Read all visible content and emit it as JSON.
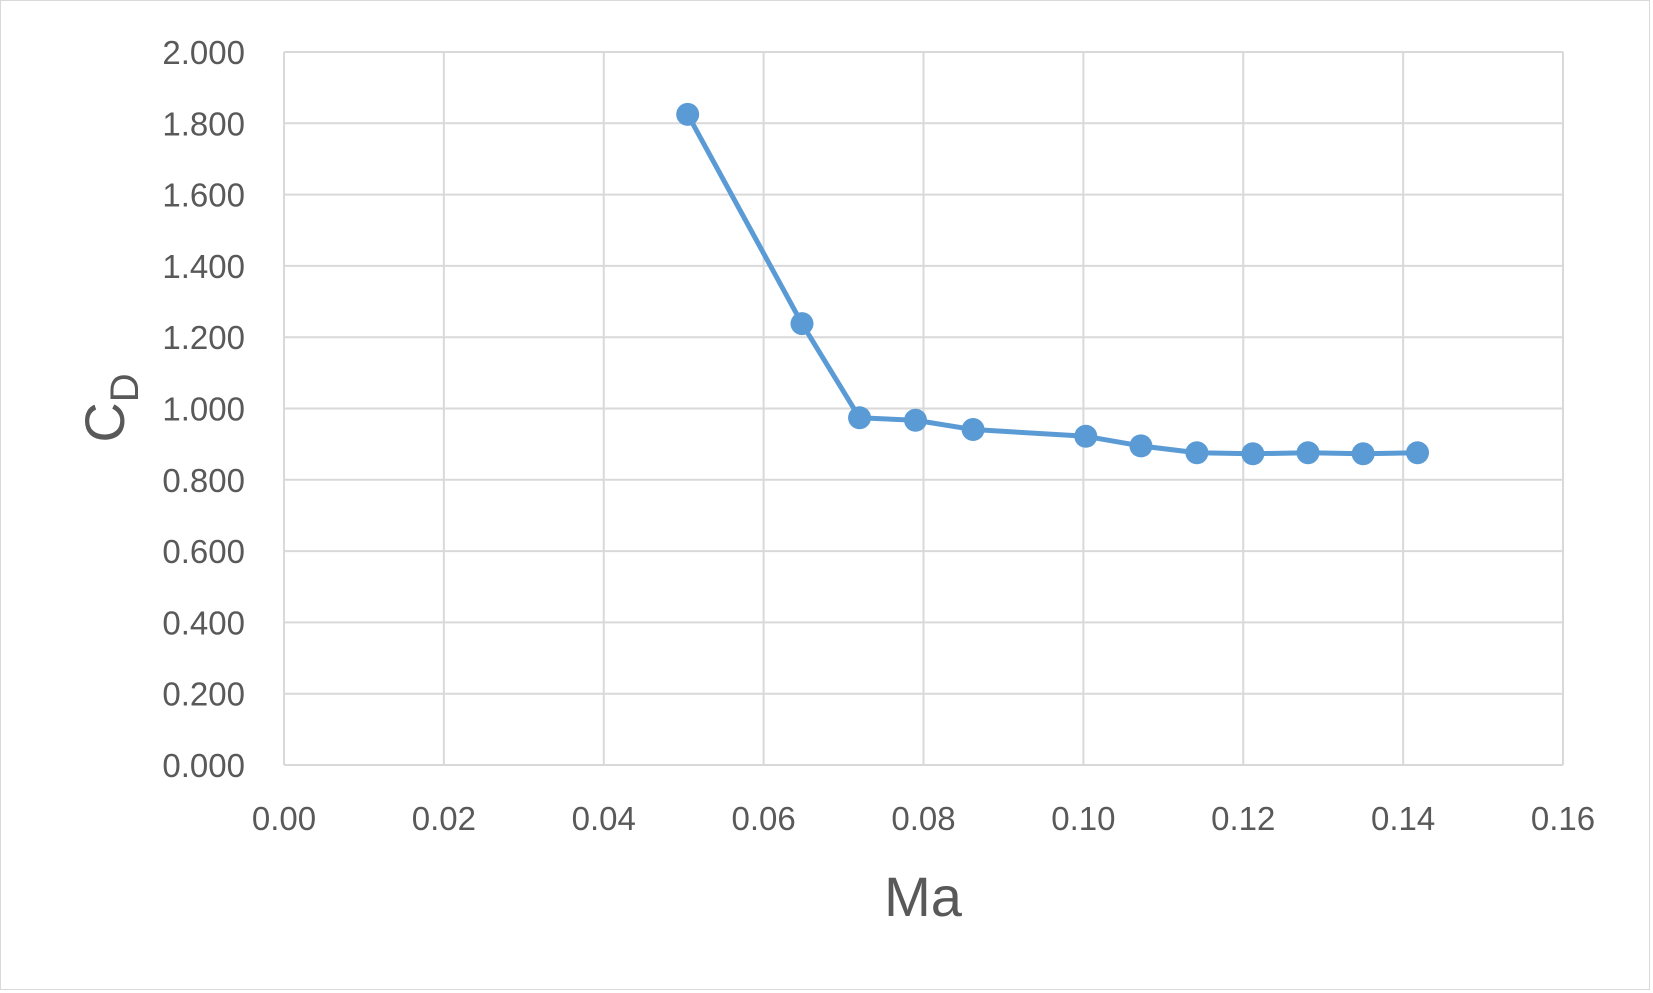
{
  "chart_data": {
    "type": "scatter",
    "xlabel": "Ma",
    "ylabel": "C",
    "ylabel_subscript": "D",
    "xlim": [
      0,
      0.16
    ],
    "ylim": [
      0,
      2.0
    ],
    "x_ticks": [
      "0.00",
      "0.02",
      "0.04",
      "0.06",
      "0.08",
      "0.10",
      "0.12",
      "0.14",
      "0.16"
    ],
    "y_ticks": [
      "0.000",
      "0.200",
      "0.400",
      "0.600",
      "0.800",
      "1.000",
      "1.200",
      "1.400",
      "1.600",
      "1.800",
      "2.000"
    ],
    "grid": true,
    "legend": "none",
    "line_color": "#5b9bd5",
    "marker": "circle",
    "series": [
      {
        "x": [
          0.0505,
          0.0648,
          0.072,
          0.079,
          0.0862,
          0.1003,
          0.1072,
          0.1142,
          0.1212,
          0.1281,
          0.135,
          0.1418
        ],
        "y": [
          1.825,
          1.238,
          0.974,
          0.967,
          0.941,
          0.922,
          0.895,
          0.876,
          0.873,
          0.876,
          0.873,
          0.876
        ]
      }
    ]
  }
}
